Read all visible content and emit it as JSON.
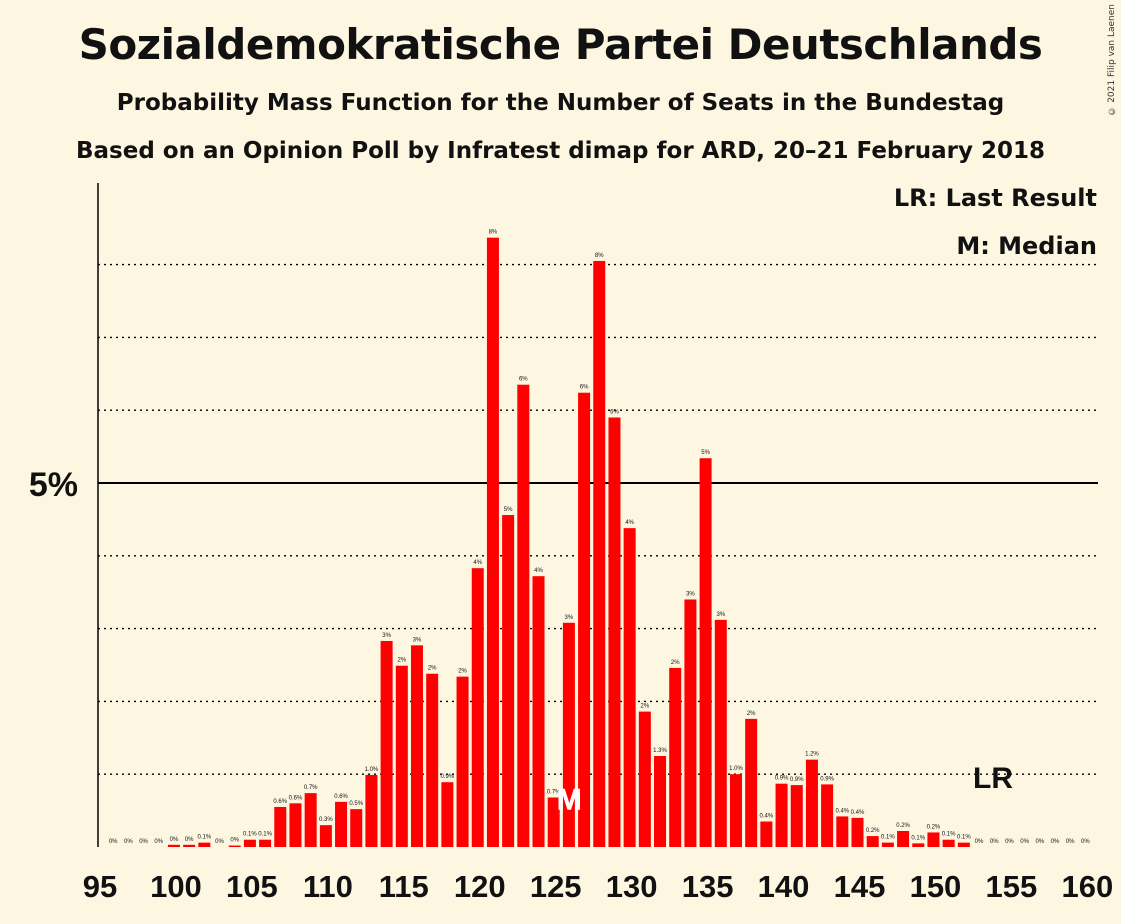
{
  "title": "Sozialdemokratische Partei Deutschlands",
  "subtitle": "Probability Mass Function for the Number of Seats in the Bundestag",
  "subtitle2": "Based on an Opinion Poll by Infratest dimap for ARD, 20–21 February 2018",
  "copyright": "© 2021 Filip van Laenen",
  "legend": {
    "lr": "LR: Last Result",
    "median": "M: Median"
  },
  "colors": {
    "bar": "#ff0000",
    "background": "#fdf6e1"
  },
  "chart_data": {
    "type": "bar",
    "x": [
      96,
      97,
      98,
      99,
      100,
      101,
      102,
      103,
      104,
      105,
      106,
      107,
      108,
      109,
      110,
      111,
      112,
      113,
      114,
      115,
      116,
      117,
      118,
      119,
      120,
      121,
      122,
      123,
      124,
      125,
      126,
      127,
      128,
      129,
      130,
      131,
      132,
      133,
      134,
      135,
      136,
      137,
      138,
      139,
      140,
      141,
      142,
      143,
      144,
      145,
      146,
      147,
      148,
      149,
      150,
      151,
      152,
      153,
      154,
      155,
      156,
      157,
      158,
      159,
      160
    ],
    "values": [
      0.0,
      0.0,
      0.0,
      0.0,
      0.03,
      0.03,
      0.06,
      0.0,
      0.02,
      0.1,
      0.1,
      0.55,
      0.6,
      0.74,
      0.3,
      0.62,
      0.52,
      0.99,
      2.83,
      2.49,
      2.77,
      2.38,
      0.89,
      2.34,
      3.83,
      8.37,
      4.56,
      6.35,
      3.72,
      0.68,
      3.08,
      6.24,
      8.05,
      5.9,
      4.38,
      1.86,
      1.25,
      2.46,
      3.4,
      5.34,
      3.12,
      1.0,
      1.76,
      0.35,
      0.87,
      0.85,
      1.2,
      0.86,
      0.42,
      0.4,
      0.15,
      0.06,
      0.22,
      0.05,
      0.2,
      0.1,
      0.06,
      0.0,
      0.0,
      0.0,
      0.0,
      0.0,
      0.0,
      0.0,
      0.0
    ],
    "labels": [
      "0%",
      "0%",
      "0%",
      "0%",
      "0%",
      "0%",
      "0.1%",
      "0%",
      "0%",
      "0.1%",
      "0.1%",
      "0.6%",
      "0.6%",
      "0.7%",
      "0.3%",
      "0.6%",
      "0.5%",
      "1.0%",
      "3%",
      "2%",
      "3%",
      "2%",
      "0.9%",
      "2%",
      "4%",
      "8%",
      "5%",
      "6%",
      "4%",
      "0.7%",
      "3%",
      "6%",
      "8%",
      "6%",
      "4%",
      "2%",
      "1.3%",
      "2%",
      "3%",
      "5%",
      "3%",
      "1.0%",
      "2%",
      "0.4%",
      "0.9%",
      "0.9%",
      "1.2%",
      "0.9%",
      "0.4%",
      "0.4%",
      "0.2%",
      "0.1%",
      "0.2%",
      "0.1%",
      "0.2%",
      "0.1%",
      "0.1%",
      "0%",
      "0%",
      "0%",
      "0%",
      "0%",
      "0%",
      "0%",
      "0%"
    ],
    "x_ticks": [
      95,
      100,
      105,
      110,
      115,
      120,
      125,
      130,
      135,
      140,
      145,
      150,
      155,
      160
    ],
    "x_tick_labels": [
      "95",
      "100",
      "105",
      "110",
      "115",
      "120",
      "125",
      "130",
      "135",
      "140",
      "145",
      "150",
      "155",
      "160"
    ],
    "y_gridlines": [
      1,
      2,
      3,
      4,
      5,
      6,
      7,
      8
    ],
    "y_major": 5,
    "y_major_label": "5%",
    "ylim": [
      0,
      8.9
    ],
    "xlim": [
      95,
      160.5
    ],
    "median_seat": 126,
    "median_label": "M",
    "last_result_seat": 153,
    "last_result_level": 1.0,
    "last_result_label": "LR"
  }
}
